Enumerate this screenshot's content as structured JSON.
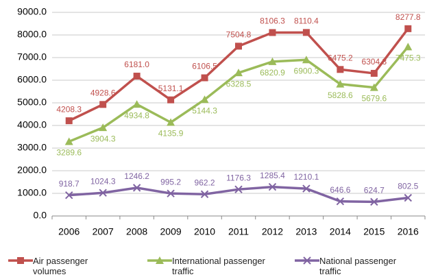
{
  "chart_data": {
    "type": "line",
    "categories": [
      "2006",
      "2007",
      "2008",
      "2009",
      "2010",
      "2011",
      "2012",
      "2013",
      "2014",
      "2015",
      "2016"
    ],
    "series": [
      {
        "name": "Air passenger volumes",
        "color": "#c0504d",
        "marker": "square",
        "values": [
          4208.3,
          4928.6,
          6181.0,
          5131.1,
          6106.5,
          7504.8,
          8106.3,
          8110.4,
          6475.2,
          6304.3,
          8277.8
        ],
        "value_labels": [
          "4208.3",
          "4928.6",
          "6181.0",
          "5131.1",
          "6106.5",
          "7504.8",
          "8106.3",
          "8110.4",
          "6475.2",
          "6304.3",
          "8277.8"
        ]
      },
      {
        "name": "International passenger traffic",
        "color": "#9bbb59",
        "marker": "triangle",
        "values": [
          3289.6,
          3904.3,
          4934.8,
          4135.9,
          5144.3,
          6328.5,
          6820.9,
          6900.3,
          5828.6,
          5679.6,
          7475.3
        ],
        "value_labels": [
          "3289.6",
          "3904.3",
          "4934.8",
          "4135.9",
          "5144.3",
          "6328.5",
          "6820.9",
          "6900.3",
          "5828.6",
          "5679.6",
          "7475.3"
        ]
      },
      {
        "name": "National passenger traffic",
        "color": "#8064a2",
        "marker": "x",
        "values": [
          918.7,
          1024.3,
          1246.2,
          995.2,
          962.2,
          1176.3,
          1285.4,
          1210.1,
          646.6,
          624.7,
          802.5
        ],
        "value_labels": [
          "918.7",
          "1024.3",
          "1246.2",
          "995.2",
          "962.2",
          "1176.3",
          "1285.4",
          "1210.1",
          "646.6",
          "624.7",
          "802.5"
        ]
      }
    ],
    "ylim": [
      0,
      9000
    ],
    "yticks": [
      {
        "value": 0,
        "label": "0.0"
      },
      {
        "value": 1000,
        "label": "1000.0"
      },
      {
        "value": 2000,
        "label": "2000.0"
      },
      {
        "value": 3000,
        "label": "3000.0"
      },
      {
        "value": 4000,
        "label": "4000.0"
      },
      {
        "value": 5000,
        "label": "5000.0"
      },
      {
        "value": 6000,
        "label": "6000.0"
      },
      {
        "value": 7000,
        "label": "7000.0"
      },
      {
        "value": 8000,
        "label": "8000.0"
      },
      {
        "value": 9000,
        "label": "9000.0"
      }
    ],
    "grid": true,
    "legend": "bottom"
  }
}
